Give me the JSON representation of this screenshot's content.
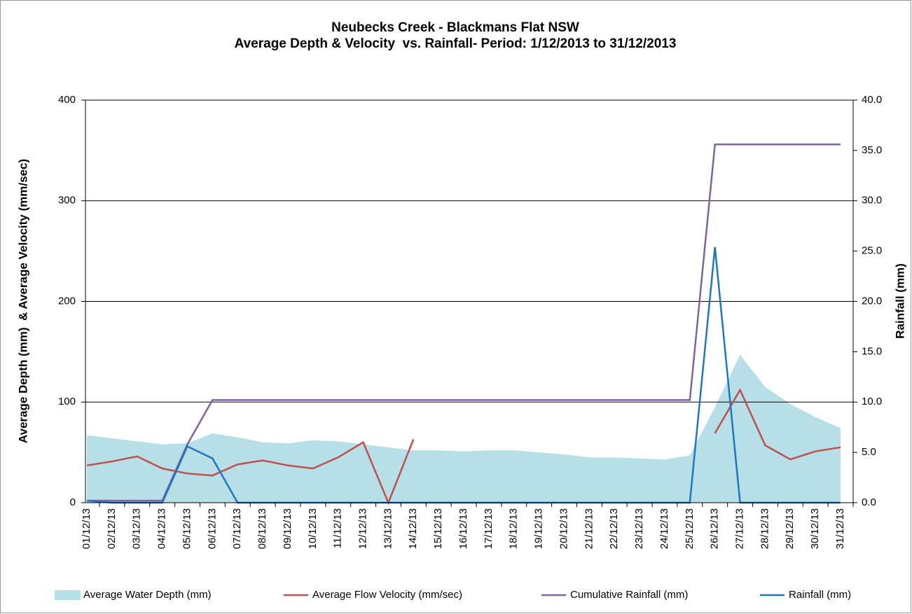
{
  "chart_data": {
    "type": "line",
    "title": "Neubecks Creek - Blackmans Flat NSW",
    "subtitle": "Average Depth & Velocity  vs. Rainfall- Period: 1/12/2013 to 31/12/2013",
    "ylabel": "Average Depth (mm)  & Average Velocity (mm/sec)",
    "y2label": "Rainfall (mm)",
    "categories": [
      "01/12/13",
      "02/12/13",
      "03/12/13",
      "04/12/13",
      "05/12/13",
      "06/12/13",
      "07/12/13",
      "08/12/13",
      "09/12/13",
      "10/12/13",
      "11/12/13",
      "12/12/13",
      "13/12/13",
      "14/12/13",
      "15/12/13",
      "16/12/13",
      "17/12/13",
      "18/12/13",
      "19/12/13",
      "20/12/13",
      "21/12/13",
      "22/12/13",
      "23/12/13",
      "24/12/13",
      "25/12/13",
      "26/12/13",
      "27/12/13",
      "28/12/13",
      "29/12/13",
      "30/12/13",
      "31/12/13"
    ],
    "series": [
      {
        "name": "Average Water Depth (mm)",
        "type": "area",
        "color": "#b7dfe8",
        "axis": "y",
        "values": [
          67,
          64,
          61,
          58,
          59,
          69,
          65,
          60,
          59,
          62,
          61,
          58,
          55,
          52,
          52,
          51,
          52,
          52,
          50,
          48,
          45,
          45,
          44,
          43,
          47,
          95,
          147,
          115,
          98,
          85,
          74
        ]
      },
      {
        "name": "Average Flow Velocity (mm/sec)",
        "type": "line",
        "color": "#c0504d",
        "axis": "y",
        "values": [
          37,
          41,
          46,
          34,
          29,
          27,
          38,
          42,
          37,
          34,
          45,
          60,
          0,
          63,
          null,
          null,
          null,
          null,
          null,
          null,
          null,
          null,
          null,
          null,
          null,
          69,
          112,
          57,
          43,
          51,
          55
        ]
      },
      {
        "name": "Cumulative Rainfall (mm)",
        "type": "line",
        "color": "#8064a2",
        "axis": "y2",
        "values": [
          0.2,
          0.2,
          0.2,
          0.2,
          5.8,
          10.2,
          10.2,
          10.2,
          10.2,
          10.2,
          10.2,
          10.2,
          10.2,
          10.2,
          10.2,
          10.2,
          10.2,
          10.2,
          10.2,
          10.2,
          10.2,
          10.2,
          10.2,
          10.2,
          10.2,
          35.6,
          35.6,
          35.6,
          35.6,
          35.6,
          35.6
        ]
      },
      {
        "name": "Rainfall (mm)",
        "type": "line",
        "color": "#1f77c0",
        "axis": "y2",
        "values": [
          0.2,
          0,
          0,
          0,
          5.6,
          4.4,
          0,
          0,
          0,
          0,
          0,
          0,
          0,
          0,
          0,
          0,
          0,
          0,
          0,
          0,
          0,
          0,
          0,
          0,
          0,
          25.4,
          0,
          0,
          0,
          0,
          0
        ]
      }
    ],
    "ylim": [
      0,
      400
    ],
    "yticks": [
      0,
      100,
      200,
      300,
      400
    ],
    "y2lim": [
      0,
      40
    ],
    "y2ticks": [
      {
        "value": 0,
        "label": "0.0"
      },
      {
        "value": 5,
        "label": "5.0"
      },
      {
        "value": 10,
        "label": "10.0"
      },
      {
        "value": 15,
        "label": "15.0"
      },
      {
        "value": 20,
        "label": "20.0"
      },
      {
        "value": 25,
        "label": "25.0"
      },
      {
        "value": 30,
        "label": "30.0"
      },
      {
        "value": 35,
        "label": "35.0"
      },
      {
        "value": 40,
        "label": "40.0"
      }
    ],
    "grid": true,
    "legend": "bottom"
  }
}
